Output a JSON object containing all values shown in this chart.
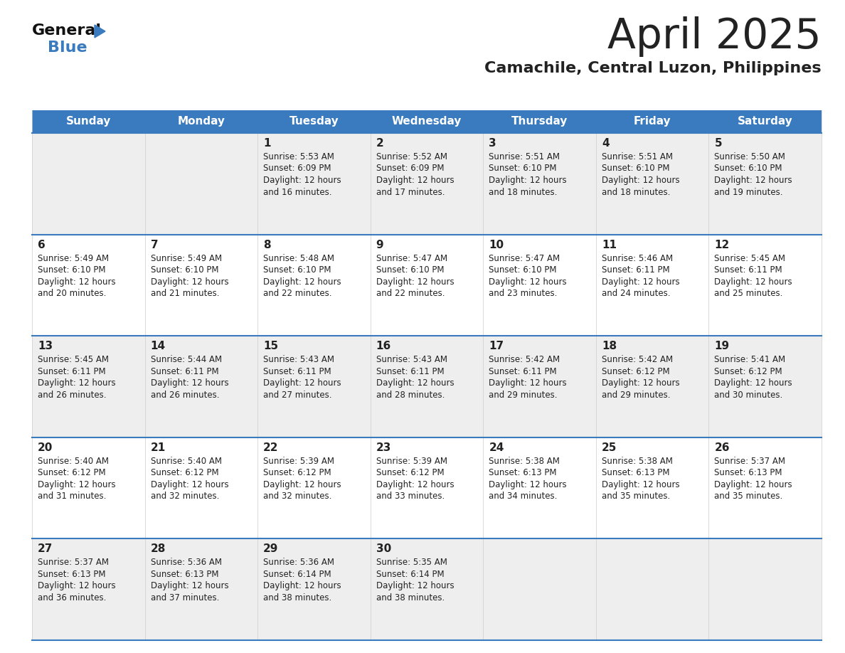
{
  "title": "April 2025",
  "subtitle": "Camachile, Central Luzon, Philippines",
  "header_color": "#3a7bbf",
  "header_text_color": "#ffffff",
  "border_color": "#3a7bbf",
  "text_color": "#222222",
  "row_bg_odd": "#eeeeee",
  "row_bg_even": "#ffffff",
  "days_of_week": [
    "Sunday",
    "Monday",
    "Tuesday",
    "Wednesday",
    "Thursday",
    "Friday",
    "Saturday"
  ],
  "weeks": [
    [
      {
        "day": "",
        "lines": []
      },
      {
        "day": "",
        "lines": []
      },
      {
        "day": "1",
        "lines": [
          "Sunrise: 5:53 AM",
          "Sunset: 6:09 PM",
          "Daylight: 12 hours",
          "and 16 minutes."
        ]
      },
      {
        "day": "2",
        "lines": [
          "Sunrise: 5:52 AM",
          "Sunset: 6:09 PM",
          "Daylight: 12 hours",
          "and 17 minutes."
        ]
      },
      {
        "day": "3",
        "lines": [
          "Sunrise: 5:51 AM",
          "Sunset: 6:10 PM",
          "Daylight: 12 hours",
          "and 18 minutes."
        ]
      },
      {
        "day": "4",
        "lines": [
          "Sunrise: 5:51 AM",
          "Sunset: 6:10 PM",
          "Daylight: 12 hours",
          "and 18 minutes."
        ]
      },
      {
        "day": "5",
        "lines": [
          "Sunrise: 5:50 AM",
          "Sunset: 6:10 PM",
          "Daylight: 12 hours",
          "and 19 minutes."
        ]
      }
    ],
    [
      {
        "day": "6",
        "lines": [
          "Sunrise: 5:49 AM",
          "Sunset: 6:10 PM",
          "Daylight: 12 hours",
          "and 20 minutes."
        ]
      },
      {
        "day": "7",
        "lines": [
          "Sunrise: 5:49 AM",
          "Sunset: 6:10 PM",
          "Daylight: 12 hours",
          "and 21 minutes."
        ]
      },
      {
        "day": "8",
        "lines": [
          "Sunrise: 5:48 AM",
          "Sunset: 6:10 PM",
          "Daylight: 12 hours",
          "and 22 minutes."
        ]
      },
      {
        "day": "9",
        "lines": [
          "Sunrise: 5:47 AM",
          "Sunset: 6:10 PM",
          "Daylight: 12 hours",
          "and 22 minutes."
        ]
      },
      {
        "day": "10",
        "lines": [
          "Sunrise: 5:47 AM",
          "Sunset: 6:10 PM",
          "Daylight: 12 hours",
          "and 23 minutes."
        ]
      },
      {
        "day": "11",
        "lines": [
          "Sunrise: 5:46 AM",
          "Sunset: 6:11 PM",
          "Daylight: 12 hours",
          "and 24 minutes."
        ]
      },
      {
        "day": "12",
        "lines": [
          "Sunrise: 5:45 AM",
          "Sunset: 6:11 PM",
          "Daylight: 12 hours",
          "and 25 minutes."
        ]
      }
    ],
    [
      {
        "day": "13",
        "lines": [
          "Sunrise: 5:45 AM",
          "Sunset: 6:11 PM",
          "Daylight: 12 hours",
          "and 26 minutes."
        ]
      },
      {
        "day": "14",
        "lines": [
          "Sunrise: 5:44 AM",
          "Sunset: 6:11 PM",
          "Daylight: 12 hours",
          "and 26 minutes."
        ]
      },
      {
        "day": "15",
        "lines": [
          "Sunrise: 5:43 AM",
          "Sunset: 6:11 PM",
          "Daylight: 12 hours",
          "and 27 minutes."
        ]
      },
      {
        "day": "16",
        "lines": [
          "Sunrise: 5:43 AM",
          "Sunset: 6:11 PM",
          "Daylight: 12 hours",
          "and 28 minutes."
        ]
      },
      {
        "day": "17",
        "lines": [
          "Sunrise: 5:42 AM",
          "Sunset: 6:11 PM",
          "Daylight: 12 hours",
          "and 29 minutes."
        ]
      },
      {
        "day": "18",
        "lines": [
          "Sunrise: 5:42 AM",
          "Sunset: 6:12 PM",
          "Daylight: 12 hours",
          "and 29 minutes."
        ]
      },
      {
        "day": "19",
        "lines": [
          "Sunrise: 5:41 AM",
          "Sunset: 6:12 PM",
          "Daylight: 12 hours",
          "and 30 minutes."
        ]
      }
    ],
    [
      {
        "day": "20",
        "lines": [
          "Sunrise: 5:40 AM",
          "Sunset: 6:12 PM",
          "Daylight: 12 hours",
          "and 31 minutes."
        ]
      },
      {
        "day": "21",
        "lines": [
          "Sunrise: 5:40 AM",
          "Sunset: 6:12 PM",
          "Daylight: 12 hours",
          "and 32 minutes."
        ]
      },
      {
        "day": "22",
        "lines": [
          "Sunrise: 5:39 AM",
          "Sunset: 6:12 PM",
          "Daylight: 12 hours",
          "and 32 minutes."
        ]
      },
      {
        "day": "23",
        "lines": [
          "Sunrise: 5:39 AM",
          "Sunset: 6:12 PM",
          "Daylight: 12 hours",
          "and 33 minutes."
        ]
      },
      {
        "day": "24",
        "lines": [
          "Sunrise: 5:38 AM",
          "Sunset: 6:13 PM",
          "Daylight: 12 hours",
          "and 34 minutes."
        ]
      },
      {
        "day": "25",
        "lines": [
          "Sunrise: 5:38 AM",
          "Sunset: 6:13 PM",
          "Daylight: 12 hours",
          "and 35 minutes."
        ]
      },
      {
        "day": "26",
        "lines": [
          "Sunrise: 5:37 AM",
          "Sunset: 6:13 PM",
          "Daylight: 12 hours",
          "and 35 minutes."
        ]
      }
    ],
    [
      {
        "day": "27",
        "lines": [
          "Sunrise: 5:37 AM",
          "Sunset: 6:13 PM",
          "Daylight: 12 hours",
          "and 36 minutes."
        ]
      },
      {
        "day": "28",
        "lines": [
          "Sunrise: 5:36 AM",
          "Sunset: 6:13 PM",
          "Daylight: 12 hours",
          "and 37 minutes."
        ]
      },
      {
        "day": "29",
        "lines": [
          "Sunrise: 5:36 AM",
          "Sunset: 6:14 PM",
          "Daylight: 12 hours",
          "and 38 minutes."
        ]
      },
      {
        "day": "30",
        "lines": [
          "Sunrise: 5:35 AM",
          "Sunset: 6:14 PM",
          "Daylight: 12 hours",
          "and 38 minutes."
        ]
      },
      {
        "day": "",
        "lines": []
      },
      {
        "day": "",
        "lines": []
      },
      {
        "day": "",
        "lines": []
      }
    ]
  ],
  "logo_general_color": "#111111",
  "logo_blue_color": "#3a7bbf",
  "logo_triangle_color": "#3a7bbf"
}
